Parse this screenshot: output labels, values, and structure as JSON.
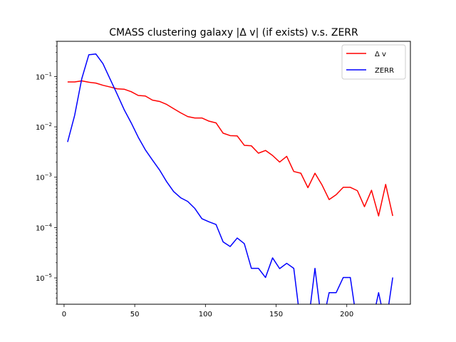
{
  "chart_data": {
    "type": "line",
    "title": "CMASS clustering galaxy |Δ v| (if exists) v.s. ZERR",
    "xlabel": "",
    "ylabel": "",
    "yscale": "log",
    "xlim": [
      -5,
      245
    ],
    "ylim": [
      3e-06,
      0.5
    ],
    "x_ticks": [
      0,
      50,
      100,
      150,
      200
    ],
    "x_tick_labels": [
      "0",
      "50",
      "100",
      "150",
      "200"
    ],
    "y_ticks": [
      1e-05,
      0.0001,
      0.001,
      0.01,
      0.1
    ],
    "y_tick_labels": [
      {
        "base": "10",
        "exp": "−5"
      },
      {
        "base": "10",
        "exp": "−4"
      },
      {
        "base": "10",
        "exp": "−3"
      },
      {
        "base": "10",
        "exp": "−2"
      },
      {
        "base": "10",
        "exp": "−1"
      }
    ],
    "grid": false,
    "legend_position": "top-right",
    "series": [
      {
        "name": "Δ v",
        "color": "#ff0000",
        "x": [
          2.5,
          7.5,
          12.5,
          17.5,
          22.5,
          27.5,
          32.5,
          37.5,
          42.5,
          47.5,
          52.5,
          57.5,
          62.5,
          67.5,
          72.5,
          77.5,
          82.5,
          87.5,
          92.5,
          97.5,
          102.5,
          107.5,
          112.5,
          117.5,
          122.5,
          127.5,
          132.5,
          137.5,
          142.5,
          147.5,
          152.5,
          157.5,
          162.5,
          167.5,
          172.5,
          177.5,
          182.5,
          187.5,
          192.5,
          197.5,
          202.5,
          207.5,
          212.5,
          217.5,
          222.5,
          227.5,
          232.5
        ],
        "values": [
          0.078,
          0.078,
          0.082,
          0.077,
          0.074,
          0.067,
          0.062,
          0.057,
          0.056,
          0.05,
          0.042,
          0.041,
          0.034,
          0.032,
          0.028,
          0.023,
          0.019,
          0.016,
          0.015,
          0.015,
          0.013,
          0.012,
          0.0075,
          0.0067,
          0.0066,
          0.0043,
          0.0042,
          0.003,
          0.0034,
          0.0027,
          0.002,
          0.0026,
          0.0013,
          0.0012,
          0.00062,
          0.0012,
          0.0007,
          0.00036,
          0.00045,
          0.00063,
          0.00063,
          0.00054,
          0.00026,
          0.00055,
          0.00017,
          0.00072,
          0.00017
        ]
      },
      {
        "name": "ZERR",
        "color": "#0000ff",
        "x": [
          2.5,
          7.5,
          12.5,
          17.5,
          22.5,
          27.5,
          32.5,
          37.5,
          42.5,
          47.5,
          52.5,
          57.5,
          62.5,
          67.5,
          72.5,
          77.5,
          82.5,
          87.5,
          92.5,
          97.5,
          102.5,
          107.5,
          112.5,
          117.5,
          122.5,
          127.5,
          132.5,
          137.5,
          142.5,
          147.5,
          152.5,
          157.5,
          162.5,
          167.5,
          172.5,
          177.5,
          182.5,
          187.5,
          192.5,
          197.5,
          202.5,
          207.5,
          212.5,
          217.5,
          222.5,
          227.5,
          232.5
        ],
        "values": [
          0.005,
          0.017,
          0.09,
          0.27,
          0.28,
          0.18,
          0.09,
          0.045,
          0.022,
          0.012,
          0.0062,
          0.0035,
          0.0022,
          0.0014,
          0.00082,
          0.00052,
          0.00039,
          0.00033,
          0.00024,
          0.00015,
          0.00013,
          0.000115,
          5.2e-05,
          4.2e-05,
          6.2e-05,
          4.8e-05,
          1.55e-05,
          1.55e-05,
          1.02e-05,
          2.5e-05,
          1.53e-05,
          1.95e-05,
          1.55e-05,
          null,
          null,
          1.55e-05,
          null,
          5.1e-06,
          5.1e-06,
          1.02e-05,
          1.02e-05,
          null,
          null,
          null,
          5.1e-06,
          null,
          1.02e-05
        ]
      }
    ]
  }
}
